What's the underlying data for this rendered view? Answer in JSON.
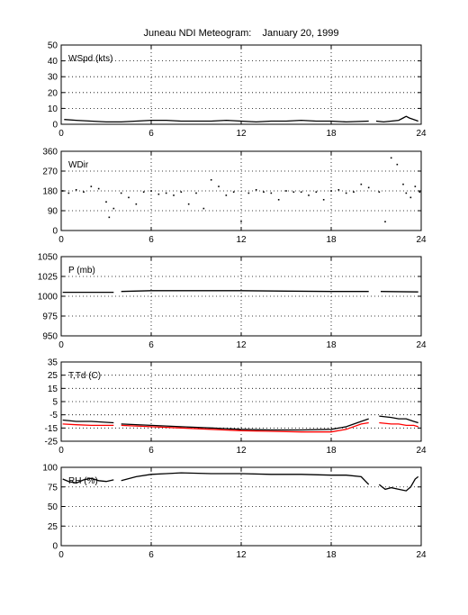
{
  "title": "Juneau NDI Meteogram:    January 20, 1999",
  "chart_data": [
    {
      "type": "line",
      "label": "WSpd (kts)",
      "xlim": [
        0,
        24
      ],
      "ylim": [
        0,
        50
      ],
      "xticks": [
        0,
        6,
        12,
        18,
        24
      ],
      "yticks": [
        0,
        10,
        20,
        30,
        40,
        50
      ],
      "grid": true,
      "series": [
        {
          "color": "#000000",
          "style": "line",
          "segments": [
            {
              "x": [
                0.2,
                1,
                2,
                3,
                4,
                5,
                6,
                7,
                8,
                9,
                10,
                11,
                12,
                13,
                14,
                15,
                16,
                17,
                18,
                19,
                20.5
              ],
              "y": [
                3,
                2.5,
                2,
                1.5,
                1.5,
                2,
                2.5,
                2.5,
                2,
                2,
                2,
                2.5,
                2,
                1.5,
                2,
                2,
                2.5,
                2,
                2,
                1.5,
                2
              ]
            },
            {
              "x": [
                21,
                21.5,
                22,
                22.5,
                22.8,
                23,
                23.2,
                23.5,
                23.8
              ],
              "y": [
                2,
                1.5,
                2,
                2.5,
                4,
                5,
                4,
                3,
                2
              ]
            }
          ]
        }
      ]
    },
    {
      "type": "scatter",
      "label": "WDir",
      "xlim": [
        0,
        24
      ],
      "ylim": [
        0,
        360
      ],
      "xticks": [
        0,
        6,
        12,
        18,
        24
      ],
      "yticks": [
        0,
        90,
        180,
        270,
        360
      ],
      "grid": true,
      "series": [
        {
          "color": "#000000",
          "style": "points",
          "x": [
            0.1,
            0.5,
            1,
            1.5,
            2,
            2.5,
            3,
            3.2,
            3.5,
            4,
            4.5,
            5,
            5.5,
            6,
            6.5,
            7,
            7.5,
            8,
            8.5,
            9,
            9.5,
            10,
            10.5,
            11,
            11.5,
            12,
            12.5,
            13,
            13.5,
            14,
            14.5,
            15,
            15.5,
            16,
            16.5,
            17,
            17.5,
            18,
            18.5,
            19,
            19.5,
            20,
            20.5,
            21.2,
            21.6,
            22,
            22.4,
            22.8,
            23,
            23.3,
            23.6,
            23.9
          ],
          "y": [
            180,
            170,
            185,
            175,
            200,
            190,
            130,
            60,
            100,
            170,
            150,
            120,
            175,
            180,
            165,
            170,
            160,
            175,
            120,
            170,
            100,
            230,
            200,
            160,
            175,
            40,
            170,
            185,
            175,
            170,
            140,
            180,
            175,
            175,
            160,
            175,
            140,
            180,
            185,
            170,
            175,
            210,
            195,
            175,
            40,
            330,
            300,
            210,
            170,
            150,
            200,
            175
          ]
        }
      ]
    },
    {
      "type": "line",
      "label": "P (mb)",
      "xlim": [
        0,
        24
      ],
      "ylim": [
        950,
        1050
      ],
      "xticks": [
        0,
        6,
        12,
        18,
        24
      ],
      "yticks": [
        950,
        975,
        1000,
        1025,
        1050
      ],
      "grid": true,
      "series": [
        {
          "color": "#000000",
          "style": "line",
          "segments": [
            {
              "x": [
                0.1,
                3.5
              ],
              "y": [
                1005,
                1005
              ]
            },
            {
              "x": [
                4,
                6,
                8,
                12,
                15,
                18,
                20.5
              ],
              "y": [
                1006,
                1007,
                1007,
                1007,
                1006.5,
                1006,
                1006
              ]
            },
            {
              "x": [
                21.3,
                23.8
              ],
              "y": [
                1006,
                1005.5
              ]
            }
          ]
        }
      ]
    },
    {
      "type": "line",
      "label": "T,Td (C)",
      "xlim": [
        0,
        24
      ],
      "ylim": [
        -25,
        35
      ],
      "xticks": [
        0,
        6,
        12,
        18,
        24
      ],
      "yticks": [
        -25,
        -15,
        -5,
        5,
        15,
        25,
        35
      ],
      "grid": true,
      "series": [
        {
          "color": "#000000",
          "style": "line",
          "segments": [
            {
              "x": [
                0.1,
                1,
                2,
                3.5
              ],
              "y": [
                -9,
                -10,
                -10,
                -11
              ]
            },
            {
              "x": [
                4,
                6,
                8,
                10,
                12,
                14,
                16,
                18,
                19,
                20,
                20.5
              ],
              "y": [
                -12,
                -13,
                -14,
                -15,
                -16,
                -16.5,
                -16.5,
                -16,
                -14,
                -10,
                -8
              ]
            },
            {
              "x": [
                21.2,
                22,
                22.5,
                23,
                23.5,
                23.8
              ],
              "y": [
                -6,
                -7,
                -8,
                -8,
                -10,
                -11
              ]
            }
          ]
        },
        {
          "color": "#ff0000",
          "style": "line",
          "segments": [
            {
              "x": [
                0.1,
                1,
                2,
                3.5
              ],
              "y": [
                -12,
                -12.5,
                -13,
                -13
              ]
            },
            {
              "x": [
                4,
                6,
                8,
                10,
                12,
                14,
                16,
                18,
                19,
                20,
                20.5
              ],
              "y": [
                -13,
                -14,
                -15,
                -16,
                -17,
                -17.5,
                -18,
                -18,
                -16,
                -12,
                -11
              ]
            },
            {
              "x": [
                21.2,
                22,
                22.5,
                23,
                23.5,
                23.8
              ],
              "y": [
                -11,
                -12,
                -12,
                -13,
                -13,
                -14
              ]
            }
          ]
        }
      ]
    },
    {
      "type": "line",
      "label": "RH (%)",
      "xlim": [
        0,
        24
      ],
      "ylim": [
        0,
        100
      ],
      "xticks": [
        0,
        6,
        12,
        18,
        24
      ],
      "yticks": [
        0,
        25,
        50,
        75,
        100
      ],
      "grid": true,
      "series": [
        {
          "color": "#000000",
          "style": "line",
          "segments": [
            {
              "x": [
                0.1,
                0.5,
                1,
                1.5,
                2,
                2.5,
                3,
                3.5
              ],
              "y": [
                85,
                82,
                80,
                84,
                86,
                83,
                82,
                84
              ]
            },
            {
              "x": [
                4,
                5,
                6,
                7,
                8,
                10,
                12,
                14,
                16,
                18,
                19,
                20,
                20.5
              ],
              "y": [
                83,
                88,
                91,
                92,
                93,
                92,
                92,
                91,
                91,
                90,
                90,
                88,
                78
              ]
            },
            {
              "x": [
                21.2,
                21.6,
                22,
                22.5,
                23,
                23.3,
                23.6,
                23.8
              ],
              "y": [
                78,
                72,
                74,
                72,
                70,
                75,
                85,
                88
              ]
            }
          ]
        }
      ]
    }
  ]
}
